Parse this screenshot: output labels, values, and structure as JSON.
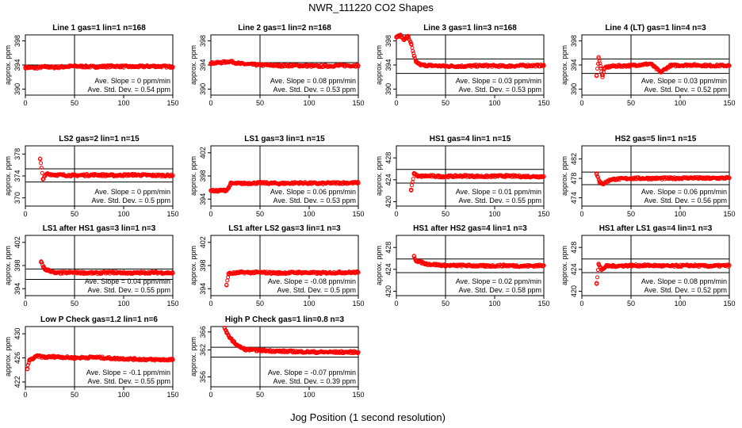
{
  "figure": {
    "title": "NWR_111220  CO2 Shapes",
    "xlabel": "Jog Position (1 second resolution)"
  },
  "chart_data": [
    {
      "type": "scatter",
      "title": "Line 1 gas=1 lin=1 n=168",
      "ylabel": "approx. ppm",
      "xlim": [
        0,
        150
      ],
      "ylim": [
        389,
        399
      ],
      "yticks": [
        390,
        394,
        398
      ],
      "xticks": [
        0,
        50,
        100,
        150
      ],
      "hlines": [
        394.0
      ],
      "vline": 50,
      "slope_text": "Ave. Slope = 0 ppm/min",
      "std_text": "Ave. Std. Dev. = 0.54 ppm",
      "points": [
        [
          0,
          393.6
        ],
        [
          10,
          393.5
        ],
        [
          20,
          393.7
        ],
        [
          30,
          393.6
        ],
        [
          50,
          393.8
        ],
        [
          70,
          393.7
        ],
        [
          90,
          393.8
        ],
        [
          110,
          393.7
        ],
        [
          130,
          393.8
        ],
        [
          150,
          393.7
        ]
      ]
    },
    {
      "type": "scatter",
      "title": "Line 2 gas=1 lin=2 n=168",
      "ylabel": "approx. ppm",
      "xlim": [
        0,
        150
      ],
      "ylim": [
        389,
        399
      ],
      "yticks": [
        390,
        394,
        398
      ],
      "xticks": [
        0,
        50,
        100,
        150
      ],
      "hlines": [
        394.4
      ],
      "vline": 50,
      "slope_text": "Ave. Slope = 0.08 ppm/min",
      "std_text": "Ave. Std. Dev. = 0.53 ppm",
      "points": [
        [
          0,
          394.3
        ],
        [
          10,
          394.4
        ],
        [
          20,
          394.6
        ],
        [
          30,
          394.2
        ],
        [
          50,
          394.0
        ],
        [
          70,
          393.9
        ],
        [
          90,
          393.9
        ],
        [
          110,
          393.8
        ],
        [
          130,
          393.9
        ],
        [
          150,
          393.9
        ]
      ]
    },
    {
      "type": "scatter",
      "title": "Line 3 gas=1 lin=3 n=168",
      "ylabel": "approx. ppm",
      "xlim": [
        0,
        150
      ],
      "ylim": [
        389,
        399
      ],
      "yticks": [
        390,
        394,
        398
      ],
      "xticks": [
        0,
        50,
        100,
        150
      ],
      "hlines": [
        395.0,
        392.6
      ],
      "vline": 50,
      "slope_text": "Ave. Slope = 0.03 ppm/min",
      "std_text": "Ave. Std. Dev. = 0.53 ppm",
      "points": [
        [
          0,
          398.6
        ],
        [
          4,
          398.9
        ],
        [
          8,
          398.2
        ],
        [
          12,
          398.8
        ],
        [
          15,
          397.5
        ],
        [
          18,
          395.5
        ],
        [
          20,
          394.5
        ],
        [
          25,
          394.0
        ],
        [
          35,
          393.9
        ],
        [
          50,
          393.8
        ],
        [
          70,
          393.8
        ],
        [
          90,
          393.9
        ],
        [
          110,
          393.8
        ],
        [
          130,
          393.9
        ],
        [
          150,
          393.9
        ]
      ]
    },
    {
      "type": "scatter",
      "title": "Line 4 (LT) gas=1 lin=4 n=3",
      "ylabel": "approx. ppm",
      "xlim": [
        0,
        150
      ],
      "ylim": [
        389,
        399
      ],
      "yticks": [
        390,
        394,
        398
      ],
      "xticks": [
        0,
        50,
        100,
        150
      ],
      "hlines": [
        395.0,
        392.6
      ],
      "vline": 50,
      "slope_text": "Ave. Slope = 0.03 ppm/min",
      "std_text": "Ave. Std. Dev. = 0.52 ppm",
      "points": [
        [
          15,
          392.2
        ],
        [
          17,
          395.3
        ],
        [
          19,
          393.8
        ],
        [
          21,
          392.0
        ],
        [
          23,
          393.5
        ],
        [
          30,
          393.8
        ],
        [
          50,
          393.9
        ],
        [
          70,
          394.2
        ],
        [
          80,
          392.8
        ],
        [
          90,
          393.9
        ],
        [
          110,
          394.0
        ],
        [
          130,
          393.9
        ],
        [
          150,
          393.9
        ]
      ]
    },
    {
      "type": "scatter",
      "title": "LS2 gas=2 lin=1 n=15",
      "ylabel": "approx. ppm",
      "xlim": [
        0,
        150
      ],
      "ylim": [
        368.5,
        379.5
      ],
      "yticks": [
        370,
        374,
        378
      ],
      "xticks": [
        0,
        50,
        100,
        150
      ],
      "hlines": [
        375.3,
        372.9
      ],
      "vline": 50,
      "slope_text": "Ave. Slope = 0 ppm/min",
      "std_text": "Ave. Std. Dev. = 0.5 ppm",
      "points": [
        [
          15,
          377.1
        ],
        [
          18,
          373.4
        ],
        [
          22,
          374.4
        ],
        [
          30,
          374.2
        ],
        [
          50,
          374.1
        ],
        [
          70,
          374.2
        ],
        [
          90,
          374.1
        ],
        [
          110,
          374.2
        ],
        [
          130,
          374.1
        ],
        [
          150,
          374.1
        ]
      ]
    },
    {
      "type": "scatter",
      "title": "LS1 gas=3 lin=1 n=15",
      "ylabel": "approx. ppm",
      "xlim": [
        0,
        150
      ],
      "ylim": [
        392.8,
        403.2
      ],
      "yticks": [
        394,
        398,
        402
      ],
      "xticks": [
        0,
        50,
        100,
        150
      ],
      "hlines": [],
      "vline": 50,
      "slope_text": "Ave. Slope = 0.06 ppm/min",
      "std_text": "Ave. Std. Dev. = 0.53 ppm",
      "points": [
        [
          0,
          395.5
        ],
        [
          5,
          395.4
        ],
        [
          10,
          395.5
        ],
        [
          15,
          395.5
        ],
        [
          18,
          395.9
        ],
        [
          20,
          396.7
        ],
        [
          30,
          396.7
        ],
        [
          50,
          396.8
        ],
        [
          70,
          396.7
        ],
        [
          90,
          396.8
        ],
        [
          110,
          396.7
        ],
        [
          130,
          396.8
        ],
        [
          150,
          396.8
        ]
      ]
    },
    {
      "type": "scatter",
      "title": "HS1 gas=4 lin=1 n=15",
      "ylabel": "approx. ppm",
      "xlim": [
        0,
        150
      ],
      "ylim": [
        419.2,
        430.2
      ],
      "yticks": [
        420,
        424,
        428
      ],
      "xticks": [
        0,
        50,
        100,
        150
      ],
      "hlines": [
        425.9,
        423.4
      ],
      "vline": 50,
      "slope_text": "Ave. Slope = 0.01 ppm/min",
      "std_text": "Ave. Std. Dev. = 0.55 ppm",
      "points": [
        [
          15,
          422.2
        ],
        [
          18,
          425.2
        ],
        [
          22,
          424.6
        ],
        [
          30,
          424.7
        ],
        [
          50,
          424.6
        ],
        [
          70,
          424.7
        ],
        [
          90,
          424.6
        ],
        [
          110,
          424.7
        ],
        [
          130,
          424.6
        ],
        [
          150,
          424.6
        ]
      ]
    },
    {
      "type": "scatter",
      "title": "HS2 gas=5 lin=1 n=15",
      "ylabel": "approx. ppm",
      "xlim": [
        0,
        150
      ],
      "ylim": [
        472.3,
        484.7
      ],
      "yticks": [
        474,
        478,
        482
      ],
      "xticks": [
        0,
        50,
        100,
        150
      ],
      "hlines": [
        479.3,
        476.7
      ],
      "vline": 50,
      "slope_text": "Ave. Slope = 0.06 ppm/min",
      "std_text": "Ave. Std. Dev. = 0.56 ppm",
      "points": [
        [
          15,
          479.0
        ],
        [
          18,
          477.2
        ],
        [
          22,
          476.9
        ],
        [
          26,
          477.4
        ],
        [
          30,
          477.8
        ],
        [
          50,
          478.0
        ],
        [
          70,
          478.0
        ],
        [
          90,
          478.0
        ],
        [
          110,
          478.1
        ],
        [
          130,
          478.0
        ],
        [
          150,
          478.1
        ]
      ]
    },
    {
      "type": "scatter",
      "title": "LS1 after HS1 gas=3 lin=1 n=3",
      "ylabel": "approx. ppm",
      "xlim": [
        0,
        150
      ],
      "ylim": [
        392.8,
        403.2
      ],
      "yticks": [
        394,
        398,
        402
      ],
      "xticks": [
        0,
        50,
        100,
        150
      ],
      "hlines": [
        397.4,
        395.6
      ],
      "vline": 50,
      "slope_text": "Ave. Slope = 0.04 ppm/min",
      "std_text": "Ave. Std. Dev. = 0.55 ppm",
      "points": [
        [
          16,
          398.6
        ],
        [
          20,
          397.3
        ],
        [
          25,
          397.1
        ],
        [
          30,
          396.7
        ],
        [
          50,
          396.8
        ],
        [
          70,
          396.7
        ],
        [
          90,
          396.8
        ],
        [
          110,
          396.7
        ],
        [
          130,
          396.8
        ],
        [
          150,
          396.7
        ]
      ]
    },
    {
      "type": "scatter",
      "title": "LS1 after LS2 gas=3 lin=1 n=3",
      "ylabel": "approx. ppm",
      "xlim": [
        0,
        150
      ],
      "ylim": [
        392.8,
        403.2
      ],
      "yticks": [
        394,
        398,
        402
      ],
      "xticks": [
        0,
        50,
        100,
        150
      ],
      "hlines": [],
      "vline": 50,
      "slope_text": "Ave. Slope = -0.08 ppm/min",
      "std_text": "Ave. Std. Dev. = 0.5 ppm",
      "points": [
        [
          16,
          394.6
        ],
        [
          18,
          396.6
        ],
        [
          25,
          396.7
        ],
        [
          30,
          396.8
        ],
        [
          50,
          396.8
        ],
        [
          70,
          396.7
        ],
        [
          90,
          396.8
        ],
        [
          110,
          396.7
        ],
        [
          130,
          396.8
        ],
        [
          150,
          396.8
        ]
      ]
    },
    {
      "type": "scatter",
      "title": "HS1 after HS2 gas=4 lin=1 n=3",
      "ylabel": "approx. ppm",
      "xlim": [
        0,
        150
      ],
      "ylim": [
        419.2,
        430.2
      ],
      "yticks": [
        420,
        424,
        428
      ],
      "xticks": [
        0,
        50,
        100,
        150
      ],
      "hlines": [
        425.9,
        423.4
      ],
      "vline": 50,
      "slope_text": "Ave. Slope = 0.02 ppm/min",
      "std_text": "Ave. Std. Dev. = 0.58 ppm",
      "points": [
        [
          18,
          426.4
        ],
        [
          20,
          425.6
        ],
        [
          25,
          425.3
        ],
        [
          30,
          425.0
        ],
        [
          50,
          424.7
        ],
        [
          70,
          424.7
        ],
        [
          90,
          424.6
        ],
        [
          110,
          424.7
        ],
        [
          130,
          424.6
        ],
        [
          150,
          424.7
        ]
      ]
    },
    {
      "type": "scatter",
      "title": "HS1 after LS1 gas=4 lin=1 n=3",
      "ylabel": "approx. ppm",
      "xlim": [
        0,
        150
      ],
      "ylim": [
        419.2,
        430.2
      ],
      "yticks": [
        420,
        424,
        428
      ],
      "xticks": [
        0,
        50,
        100,
        150
      ],
      "hlines": [
        425.9,
        423.4
      ],
      "vline": 50,
      "slope_text": "Ave. Slope = 0.08 ppm/min",
      "std_text": "Ave. Std. Dev. = 0.52 ppm",
      "points": [
        [
          15,
          421.5
        ],
        [
          17,
          425.0
        ],
        [
          20,
          423.9
        ],
        [
          25,
          424.6
        ],
        [
          30,
          424.6
        ],
        [
          50,
          424.7
        ],
        [
          70,
          424.7
        ],
        [
          90,
          424.6
        ],
        [
          110,
          424.7
        ],
        [
          130,
          424.6
        ],
        [
          150,
          424.7
        ]
      ]
    },
    {
      "type": "scatter",
      "title": "Low P Check gas=1.2 lin=1 n=6",
      "ylabel": "approx. ppm",
      "xlim": [
        0,
        150
      ],
      "ylim": [
        421.2,
        431.2
      ],
      "yticks": [
        422,
        426,
        430
      ],
      "xticks": [
        0,
        50,
        100,
        150
      ],
      "hlines": [],
      "vline": 50,
      "slope_text": "Ave. Slope = -0.1 ppm/min",
      "std_text": "Ave. Std. Dev. = 0.55 ppm",
      "points": [
        [
          2,
          424.2
        ],
        [
          4,
          425.6
        ],
        [
          8,
          425.9
        ],
        [
          12,
          426.3
        ],
        [
          20,
          426.1
        ],
        [
          30,
          426.2
        ],
        [
          50,
          426.0
        ],
        [
          70,
          426.1
        ],
        [
          90,
          425.9
        ],
        [
          110,
          425.8
        ],
        [
          130,
          425.7
        ],
        [
          150,
          425.7
        ]
      ]
    },
    {
      "type": "scatter",
      "title": "High P Check gas=1 lin=0.8 n=3",
      "ylabel": "approx. ppm",
      "xlim": [
        0,
        150
      ],
      "ylim": [
        353.8,
        367.2
      ],
      "yticks": [
        356,
        362,
        366
      ],
      "xticks": [
        0,
        50,
        100,
        150
      ],
      "hlines": [
        362.6,
        360.4
      ],
      "vline": 50,
      "slope_text": "Ave. Slope = -0.07 ppm/min",
      "std_text": "Ave. Std. Dev. = 0.39 ppm",
      "points": [
        [
          14,
          366.9
        ],
        [
          16,
          365.8
        ],
        [
          18,
          365.2
        ],
        [
          20,
          364.6
        ],
        [
          23,
          363.8
        ],
        [
          26,
          363.2
        ],
        [
          30,
          362.6
        ],
        [
          35,
          362.1
        ],
        [
          50,
          361.9
        ],
        [
          70,
          361.7
        ],
        [
          90,
          361.6
        ],
        [
          110,
          361.5
        ],
        [
          130,
          361.5
        ],
        [
          150,
          361.5
        ]
      ]
    }
  ]
}
